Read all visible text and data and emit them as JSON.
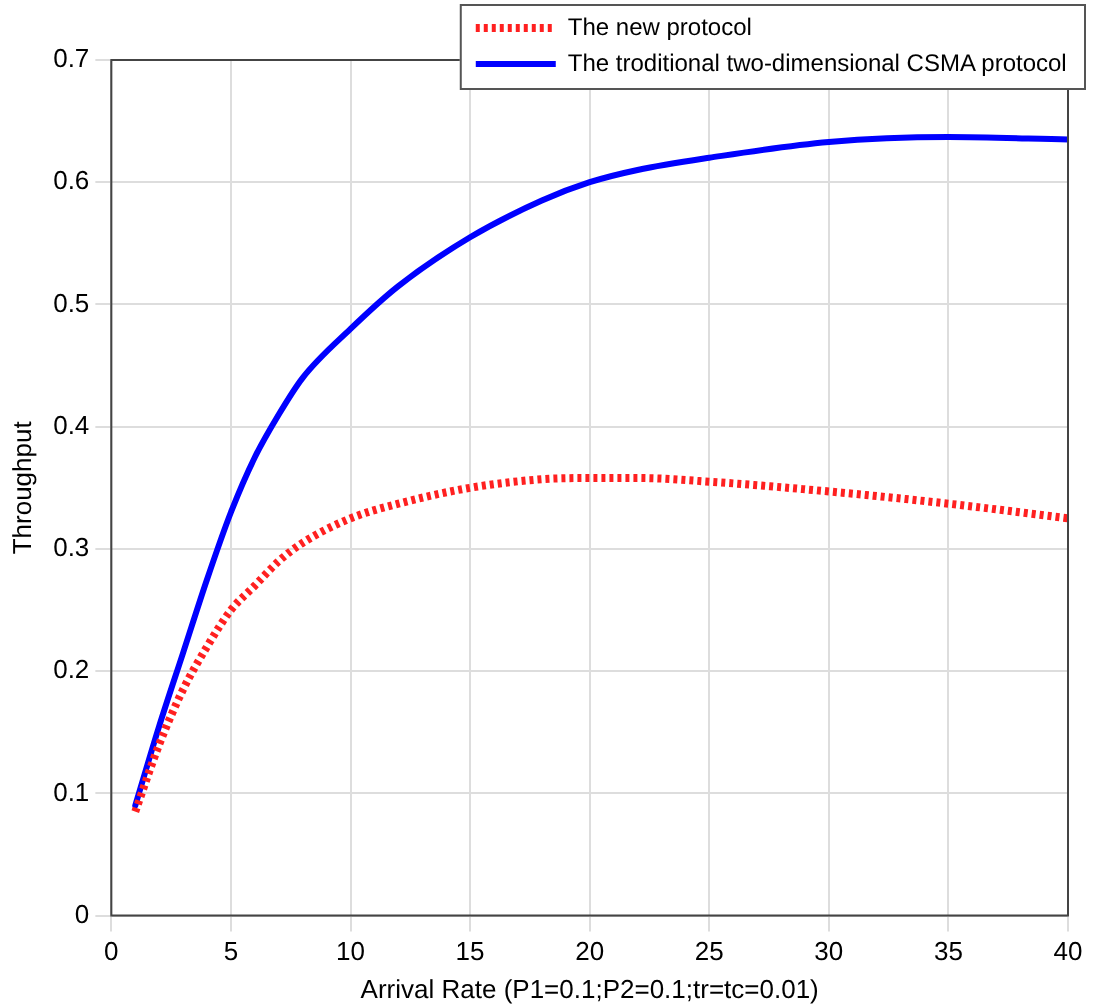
{
  "chart_data": {
    "type": "line",
    "xlabel": "Arrival Rate (P1=0.1;P2=0.1;tr=tc=0.01)",
    "ylabel": "Throughput",
    "xlim": [
      0,
      40
    ],
    "xticks": [
      0,
      5,
      10,
      15,
      20,
      25,
      30,
      35,
      40
    ],
    "ylim": [
      0,
      0.7
    ],
    "yticks": [
      0,
      0.1,
      0.2,
      0.3,
      0.4,
      0.5,
      0.6,
      0.7
    ],
    "grid": true,
    "legend": "top right",
    "marker": "none",
    "x": [
      1,
      2,
      3,
      4,
      5,
      6,
      7,
      8,
      10,
      12,
      15,
      18,
      20,
      22,
      25,
      30,
      35,
      40
    ],
    "series": [
      {
        "name": "The new protocol",
        "color": "#ff2020",
        "line_style": "dotted",
        "values": [
          0.085,
          0.14,
          0.185,
          0.22,
          0.25,
          0.27,
          0.29,
          0.305,
          0.325,
          0.337,
          0.35,
          0.357,
          0.358,
          0.358,
          0.355,
          0.347,
          0.337,
          0.325
        ]
      },
      {
        "name": "The troditional two-dimensional CSMA protocol",
        "color": "#0000ff",
        "line_style": "solid",
        "values": [
          0.09,
          0.155,
          0.215,
          0.275,
          0.33,
          0.375,
          0.41,
          0.44,
          0.48,
          0.515,
          0.555,
          0.585,
          0.6,
          0.61,
          0.62,
          0.633,
          0.637,
          0.635
        ]
      }
    ]
  }
}
